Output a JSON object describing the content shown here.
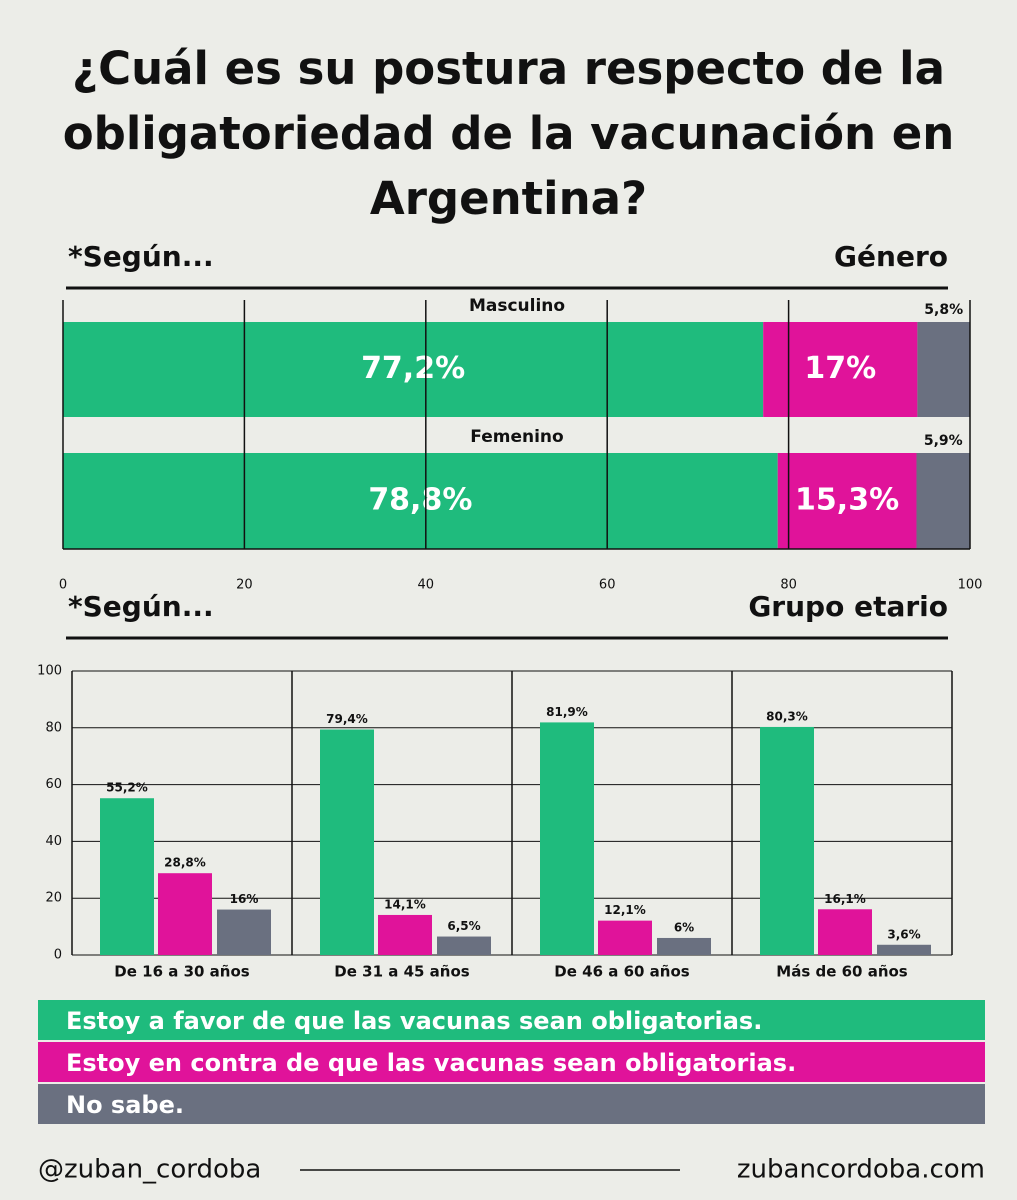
{
  "title": "¿Cuál es su postura respecto de la obligatoriedad de la vacunación en Argentina?",
  "footer": {
    "handle": "@zuban_cordoba",
    "website": "zubancordoba.com"
  },
  "chart_data": [
    {
      "type": "stacked_hbar",
      "label_left": "*Según...",
      "label_right": "Género",
      "categories": [
        "Masculino",
        "Femenino"
      ],
      "series": [
        {
          "color": "#1fbb7d",
          "values": [
            77.2,
            78.8
          ],
          "value_labels": [
            "77,2%",
            "78,8%"
          ]
        },
        {
          "color": "#e0139a",
          "values": [
            17,
            15.3
          ],
          "value_labels": [
            "17%",
            "15,3%"
          ]
        },
        {
          "color": "#6a7080",
          "values": [
            5.8,
            5.9
          ],
          "value_labels": [
            "5,8%",
            "5,9%"
          ]
        }
      ],
      "xlim": [
        0,
        100
      ],
      "xticks": [
        0,
        20,
        40,
        60,
        80,
        100
      ],
      "grid": true
    },
    {
      "type": "grouped_bar",
      "label_left": "*Según...",
      "label_right": "Grupo etario",
      "categories": [
        "De 16 a 30 años",
        "De 31 a 45 años",
        "De 46 a 60 años",
        "Más de 60 años"
      ],
      "series": [
        {
          "name": "Estoy a favor de que las vacunas sean obligatorias.",
          "color": "#1fbb7d",
          "values": [
            55.2,
            79.4,
            81.9,
            80.3
          ],
          "value_labels": [
            "55,2%",
            "79,4%",
            "81,9%",
            "80,3%"
          ]
        },
        {
          "name": "Estoy en contra de que las vacunas sean obligatorias.",
          "color": "#e0139a",
          "values": [
            28.8,
            14.1,
            12.1,
            16.1
          ],
          "value_labels": [
            "28,8%",
            "14,1%",
            "12,1%",
            "16,1%"
          ]
        },
        {
          "name": "No sabe.",
          "color": "#6a7080",
          "values": [
            16,
            6.5,
            6,
            3.6
          ],
          "value_labels": [
            "16%",
            "6,5%",
            "6%",
            "3,6%"
          ]
        }
      ],
      "ylim": [
        0,
        100
      ],
      "yticks": [
        0,
        20,
        40,
        60,
        80,
        100
      ],
      "grid": true
    }
  ]
}
